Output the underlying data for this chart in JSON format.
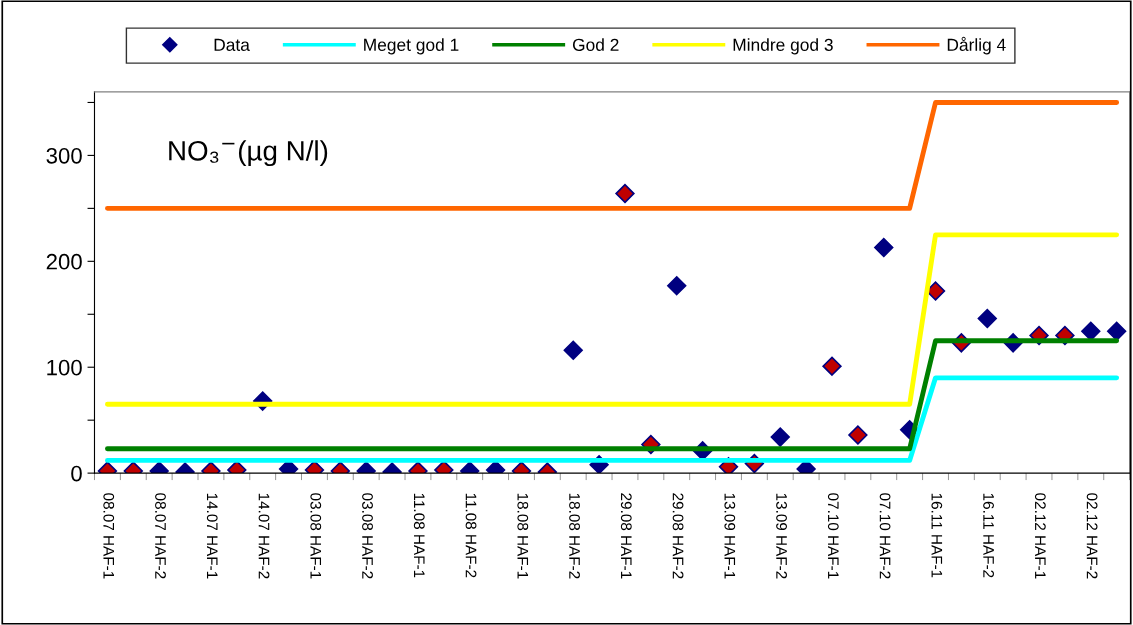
{
  "chart_data": {
    "type": "scatter",
    "categories": [
      "08.07 HAF-1",
      null,
      "08.07 HAF-2",
      null,
      "14.07 HAF-1",
      null,
      "14.07 HAF-2",
      null,
      "03.08 HAF-1",
      null,
      "03.08 HAF-2",
      null,
      "11.08 HAF-1",
      null,
      "11.08 HAF-2",
      null,
      "18.08 HAF-1",
      null,
      "18.08 HAF-2",
      null,
      "29.08 HAF-1",
      null,
      "29.08 HAF-2",
      null,
      "13.09 HAF-1",
      null,
      "13.09 HAF-2",
      null,
      "07.10 HAF-1",
      null,
      "07.10 HAF-2",
      null,
      "16.11 HAF-1",
      null,
      "16.11 HAF-2",
      null,
      "02.12 HAF-1",
      null,
      "02.12 HAF-2",
      null
    ],
    "series": [
      {
        "name": "Data",
        "marker": "diamond",
        "color": "#000080",
        "values": [
          null,
          null,
          2,
          1,
          null,
          null,
          68,
          4,
          null,
          null,
          2,
          1,
          null,
          null,
          2,
          3,
          null,
          null,
          116,
          8,
          null,
          null,
          177,
          21,
          null,
          null,
          34,
          4,
          null,
          null,
          213,
          41,
          null,
          null,
          146,
          123,
          null,
          null,
          134,
          134
        ]
      },
      {
        "marker": "diamond",
        "color": "#c00000",
        "values": [
          2,
          2,
          null,
          null,
          2,
          3,
          null,
          null,
          3,
          2,
          null,
          null,
          2,
          3,
          null,
          null,
          2,
          1,
          null,
          null,
          264,
          27,
          null,
          null,
          6,
          9,
          null,
          null,
          101,
          36,
          null,
          null,
          172,
          123,
          null,
          null,
          130,
          130,
          null,
          null
        ]
      },
      {
        "name": "Meget god 1",
        "type": "line",
        "marker": "none",
        "color": "#00ffff",
        "values": [
          12,
          12,
          12,
          12,
          12,
          12,
          12,
          12,
          12,
          12,
          12,
          12,
          12,
          12,
          12,
          12,
          12,
          12,
          12,
          12,
          12,
          12,
          12,
          12,
          12,
          12,
          12,
          12,
          12,
          12,
          12,
          12,
          90,
          90,
          90,
          90,
          90,
          90,
          90,
          90
        ]
      },
      {
        "name": "God 2",
        "type": "line",
        "marker": "none",
        "color": "#008000",
        "values": [
          23,
          23,
          23,
          23,
          23,
          23,
          23,
          23,
          23,
          23,
          23,
          23,
          23,
          23,
          23,
          23,
          23,
          23,
          23,
          23,
          23,
          23,
          23,
          23,
          23,
          23,
          23,
          23,
          23,
          23,
          23,
          23,
          125,
          125,
          125,
          125,
          125,
          125,
          125,
          125
        ]
      },
      {
        "name": "Mindre god 3",
        "type": "line",
        "marker": "none",
        "color": "#ffff00",
        "values": [
          65,
          65,
          65,
          65,
          65,
          65,
          65,
          65,
          65,
          65,
          65,
          65,
          65,
          65,
          65,
          65,
          65,
          65,
          65,
          65,
          65,
          65,
          65,
          65,
          65,
          65,
          65,
          65,
          65,
          65,
          65,
          65,
          225,
          225,
          225,
          225,
          225,
          225,
          225,
          225
        ]
      },
      {
        "name": "Dårlig 4",
        "type": "line",
        "marker": "none",
        "color": "#ff6600",
        "values": [
          250,
          250,
          250,
          250,
          250,
          250,
          250,
          250,
          250,
          250,
          250,
          250,
          250,
          250,
          250,
          250,
          250,
          250,
          250,
          250,
          250,
          250,
          250,
          250,
          250,
          250,
          250,
          250,
          250,
          250,
          250,
          250,
          350,
          350,
          350,
          350,
          350,
          350,
          350,
          350
        ]
      }
    ],
    "ylim": [
      0,
      360
    ],
    "yticks": [
      0,
      {
        "value": 50,
        "label": null
      },
      100,
      {
        "value": 150,
        "label": null
      },
      200,
      {
        "value": 250,
        "label": null
      },
      300,
      {
        "value": 350,
        "label": null
      }
    ],
    "annotations": [
      "NO₃$^{−}$(µg N/l)"
    ],
    "grid": false,
    "legend": "top",
    "line_style": "solid"
  }
}
